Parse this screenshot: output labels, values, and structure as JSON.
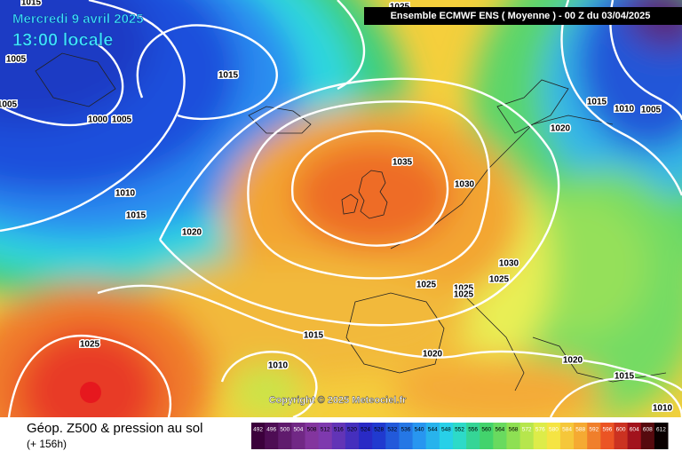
{
  "header": {
    "date": "Mercredi 9 avril 2025",
    "time": "13:00 locale",
    "model": "Ensemble ECMWF ENS  ( Moyenne )  - 00 Z du 03/04/2025"
  },
  "map": {
    "isobar_labels": [
      "1025",
      "1015",
      "1005",
      "1005",
      "1000",
      "1005",
      "1015",
      "1010",
      "1015",
      "1020",
      "1035",
      "1030",
      "1030",
      "1025",
      "1025",
      "1025",
      "1025",
      "1015",
      "1010",
      "1025",
      "1020",
      "1020",
      "1015",
      "1010",
      "1015",
      "1010",
      "1005",
      "1020"
    ],
    "copyright": "Copyright © 2025 Meteociel.fr"
  },
  "footer": {
    "title": "Géop. Z500 & pression au sol",
    "lead": "(+ 156h)"
  },
  "colorbar": {
    "ticks": [
      492,
      496,
      500,
      504,
      508,
      512,
      516,
      520,
      524,
      528,
      532,
      536,
      540,
      544,
      548,
      552,
      556,
      560,
      564,
      568,
      572,
      576,
      580,
      584,
      588,
      592,
      596,
      600,
      604,
      608,
      612
    ]
  }
}
